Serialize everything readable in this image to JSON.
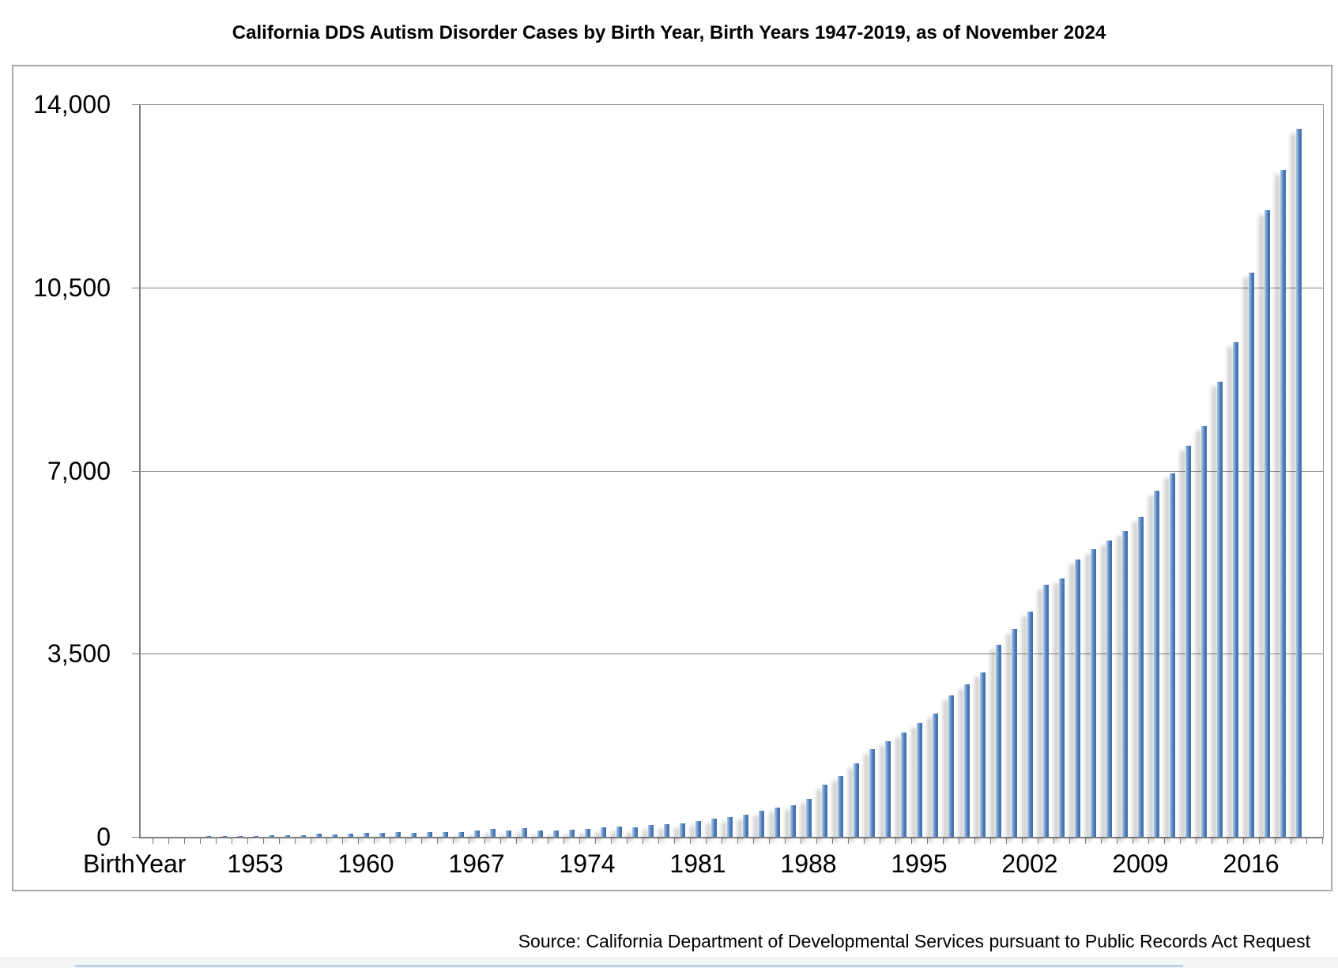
{
  "title": "California DDS Autism Disorder Cases by Birth Year, Birth Years 1947-2019, as of November 2024",
  "source": "Source: California Department of Developmental Services pursuant to Public Records Act Request",
  "colors": {
    "bar": "#4f81bd",
    "bar_highlight": "#b0c9e8",
    "gridline": "#808080",
    "axis": "#7f7f7f",
    "frame_border": "#a8a8a8",
    "bottom_accent": "#bcd0e9"
  },
  "chart_data": {
    "type": "bar",
    "title": "California DDS Autism Disorder Cases by Birth Year, Birth Years 1947-2019, as of November 2024",
    "xlabel": "BirthYear",
    "ylabel": "",
    "ylim": [
      0,
      14000
    ],
    "grid": true,
    "legend": "none",
    "ytick_values": [
      0,
      3500,
      7000,
      10500,
      14000
    ],
    "ytick_labels": [
      "0",
      "3,500",
      "7,000",
      "10,500",
      "14,000"
    ],
    "xtick_years": [
      1953,
      1960,
      1967,
      1974,
      1981,
      1988,
      1995,
      2002,
      2009,
      2016
    ],
    "xtick_labels": [
      "1953",
      "1960",
      "1967",
      "1974",
      "1981",
      "1988",
      "1995",
      "2002",
      "2009",
      "2016"
    ],
    "x": [
      1947,
      1948,
      1949,
      1950,
      1951,
      1952,
      1953,
      1954,
      1955,
      1956,
      1957,
      1958,
      1959,
      1960,
      1961,
      1962,
      1963,
      1964,
      1965,
      1966,
      1967,
      1968,
      1969,
      1970,
      1971,
      1972,
      1973,
      1974,
      1975,
      1976,
      1977,
      1978,
      1979,
      1980,
      1981,
      1982,
      1983,
      1984,
      1985,
      1986,
      1987,
      1988,
      1989,
      1990,
      1991,
      1992,
      1993,
      1994,
      1995,
      1996,
      1997,
      1998,
      1999,
      2000,
      2001,
      2002,
      2003,
      2004,
      2005,
      2006,
      2007,
      2008,
      2009,
      2010,
      2011,
      2012,
      2013,
      2014,
      2015,
      2016,
      2017,
      2018,
      2019
    ],
    "values": [
      5,
      5,
      6,
      8,
      12,
      18,
      22,
      26,
      30,
      36,
      55,
      48,
      62,
      75,
      70,
      85,
      78,
      90,
      85,
      95,
      115,
      145,
      115,
      165,
      120,
      115,
      135,
      145,
      185,
      195,
      175,
      225,
      245,
      260,
      295,
      345,
      375,
      425,
      500,
      560,
      610,
      730,
      1000,
      1170,
      1400,
      1670,
      1820,
      2000,
      2170,
      2360,
      2710,
      2920,
      3140,
      3670,
      3970,
      4300,
      4820,
      4940,
      5300,
      5490,
      5670,
      5850,
      6110,
      6610,
      6950,
      7480,
      7850,
      8700,
      9450,
      10790,
      11980,
      12740,
      13530
    ],
    "source_note": "Source: California Department of Developmental Services pursuant to Public Records Act Request"
  }
}
